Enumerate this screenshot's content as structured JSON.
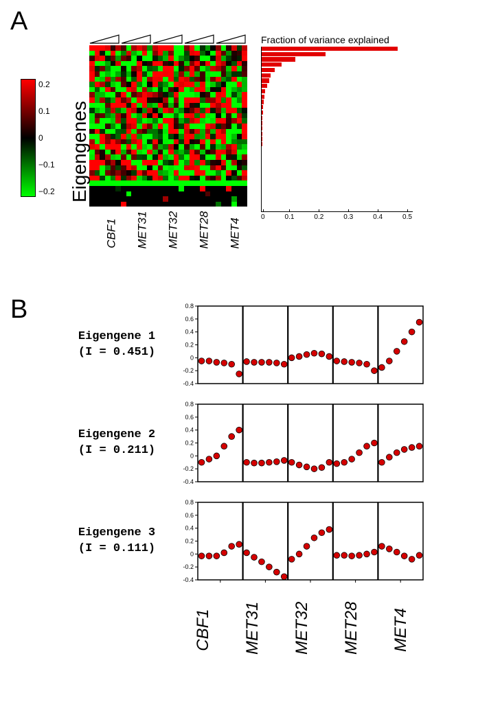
{
  "panelA": {
    "label": "A",
    "colorbar": {
      "max": 0.25,
      "min": -0.25,
      "ticks": [
        "0.2",
        "0.1",
        "0",
        "−0.1",
        "−0.2"
      ],
      "top_color": "#ff0000",
      "mid_color": "#000000",
      "bottom_color": "#00ff00"
    },
    "heatmap": {
      "ylabel": "Eigengenes",
      "xlabels": [
        "CBF1",
        "MET31",
        "MET32",
        "MET28",
        "MET4"
      ],
      "n_rows": 31,
      "n_cols": 30,
      "groups_per_label": 6,
      "color_scale": {
        "low": "#00ff00",
        "mid": "#000000",
        "high": "#ff0000"
      },
      "triangle_stroke": "#000000"
    },
    "barchart": {
      "title": "Fraction of variance explained",
      "color": "#e20000",
      "xticks": [
        "0",
        "0.1",
        "0.2",
        "0.3",
        "0.4",
        "0.5"
      ],
      "xlim": [
        0,
        0.5
      ],
      "values": [
        0.451,
        0.211,
        0.111,
        0.066,
        0.043,
        0.03,
        0.024,
        0.018,
        0.012,
        0.009,
        0.007,
        0.005,
        0.004,
        0.003,
        0.002,
        0.0015,
        0.001,
        0.0008,
        0.0006,
        0,
        0,
        0,
        0,
        0,
        0,
        0,
        0,
        0,
        0,
        0,
        0
      ]
    }
  },
  "panelB": {
    "label": "B",
    "xlabels": [
      "CBF1",
      "MET31",
      "MET32",
      "MET28",
      "MET4"
    ],
    "ylim": [
      -0.4,
      0.8
    ],
    "yticks": [
      -0.4,
      -0.2,
      0,
      0.2,
      0.4,
      0.6,
      0.8
    ],
    "marker_fill": "#d40000",
    "marker_stroke": "#000000",
    "marker_radius": 4.4,
    "group_size": 6,
    "axis_color": "#000000",
    "eigengenes": [
      {
        "title_line1": "Eigengene 1",
        "title_line2": "(I = 0.451)",
        "values": [
          -0.05,
          -0.05,
          -0.07,
          -0.08,
          -0.1,
          -0.25,
          -0.06,
          -0.07,
          -0.07,
          -0.07,
          -0.08,
          -0.1,
          0.0,
          0.02,
          0.05,
          0.07,
          0.06,
          0.02,
          -0.05,
          -0.06,
          -0.07,
          -0.08,
          -0.1,
          -0.2,
          -0.15,
          -0.05,
          0.1,
          0.25,
          0.4,
          0.55
        ]
      },
      {
        "title_line1": "Eigengene 2",
        "title_line2": "(I = 0.211)",
        "values": [
          -0.1,
          -0.05,
          0.0,
          0.15,
          0.3,
          0.4,
          -0.1,
          -0.11,
          -0.11,
          -0.1,
          -0.09,
          -0.07,
          -0.1,
          -0.14,
          -0.17,
          -0.2,
          -0.18,
          -0.1,
          -0.12,
          -0.1,
          -0.05,
          0.05,
          0.15,
          0.2,
          -0.1,
          -0.02,
          0.05,
          0.1,
          0.13,
          0.15
        ]
      },
      {
        "title_line1": "Eigengene 3",
        "title_line2": "(I = 0.111)",
        "values": [
          -0.03,
          -0.03,
          -0.03,
          0.02,
          0.12,
          0.15,
          0.02,
          -0.05,
          -0.12,
          -0.2,
          -0.28,
          -0.35,
          -0.08,
          0.0,
          0.12,
          0.25,
          0.33,
          0.38,
          -0.02,
          -0.02,
          -0.03,
          -0.02,
          0.0,
          0.03,
          0.12,
          0.08,
          0.03,
          -0.03,
          -0.08,
          -0.02
        ]
      }
    ]
  }
}
